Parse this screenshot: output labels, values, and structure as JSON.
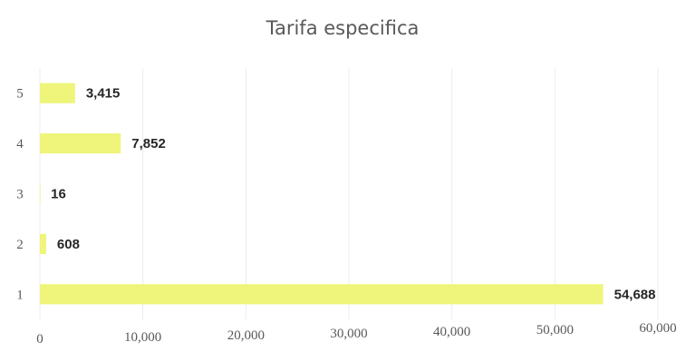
{
  "chart_data": {
    "type": "bar",
    "orientation": "horizontal",
    "title": "Tarifa especifica",
    "xlabel": "",
    "ylabel": "",
    "categories": [
      "1",
      "2",
      "3",
      "4",
      "5"
    ],
    "values": [
      54688,
      608,
      16,
      7852,
      3415
    ],
    "data_labels": [
      "54,688",
      "608",
      "16",
      "7,852",
      "3,415"
    ],
    "x_ticks": [
      "0",
      "10,000",
      "20,000",
      "30,000",
      "40,000",
      "50,000",
      "60,000"
    ],
    "xlim": [
      0,
      60000
    ],
    "grid": true,
    "legend": "none",
    "bar_color": "#eef57a"
  }
}
